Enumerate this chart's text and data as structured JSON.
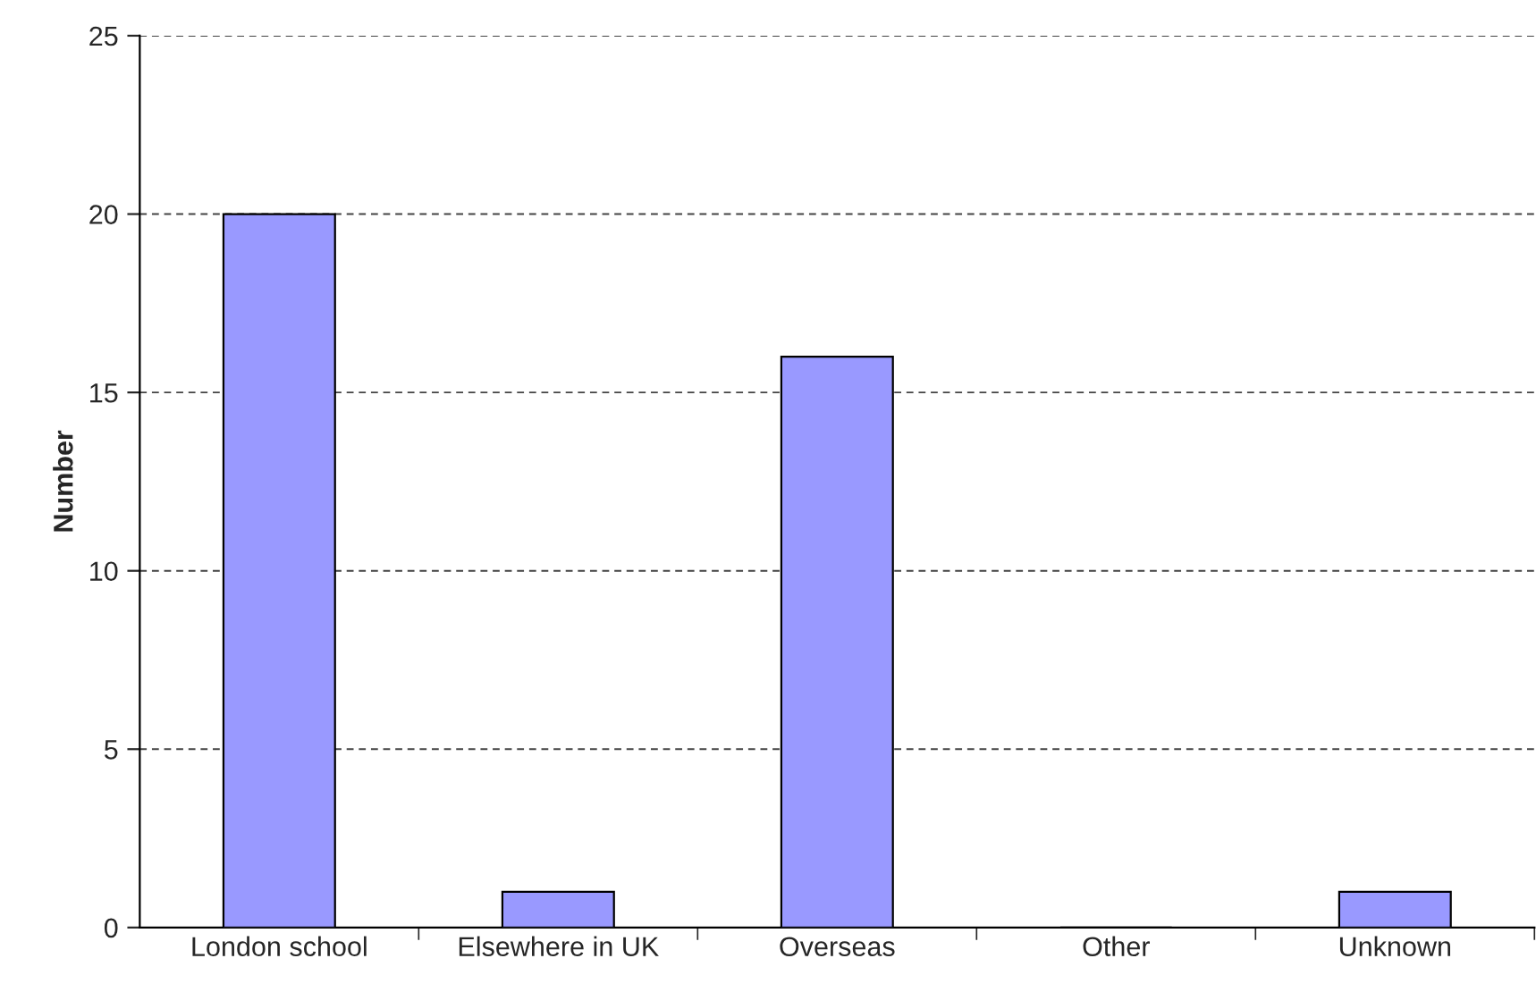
{
  "chart_data": {
    "type": "bar",
    "ylabel": "Number",
    "categories": [
      "London school",
      "Elsewhere in UK",
      "Overseas",
      "Other",
      "Unknown"
    ],
    "values": [
      20,
      1,
      16,
      0,
      1
    ],
    "color": "#9999ff",
    "ylim": [
      0,
      25
    ],
    "yticks": [
      0,
      5,
      10,
      15,
      20,
      25
    ],
    "grid": "y",
    "line_style": "dashed"
  }
}
